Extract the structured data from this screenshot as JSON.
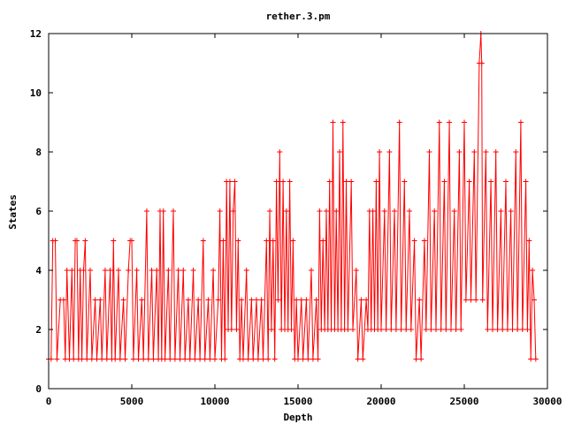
{
  "chart_data": {
    "type": "line",
    "title": "rether.3.pm",
    "xlabel": "Depth",
    "ylabel": "States",
    "xlim": [
      0,
      30000
    ],
    "ylim": [
      0,
      12
    ],
    "xticks": [
      0,
      5000,
      10000,
      15000,
      20000,
      25000,
      30000
    ],
    "yticks": [
      0,
      2,
      4,
      6,
      8,
      10,
      12
    ],
    "grid": false,
    "legend": "none",
    "series": [
      {
        "color": "#ff0000",
        "marker": "plus",
        "points": [
          [
            0,
            1
          ],
          [
            150,
            1
          ],
          [
            250,
            5
          ],
          [
            400,
            5
          ],
          [
            500,
            1
          ],
          [
            700,
            3
          ],
          [
            900,
            3
          ],
          [
            1000,
            1
          ],
          [
            1100,
            4
          ],
          [
            1250,
            1
          ],
          [
            1400,
            4
          ],
          [
            1500,
            1
          ],
          [
            1600,
            5
          ],
          [
            1700,
            5
          ],
          [
            1800,
            1
          ],
          [
            1900,
            4
          ],
          [
            2000,
            1
          ],
          [
            2100,
            4
          ],
          [
            2200,
            5
          ],
          [
            2300,
            1
          ],
          [
            2500,
            4
          ],
          [
            2600,
            1
          ],
          [
            2800,
            3
          ],
          [
            2900,
            1
          ],
          [
            3100,
            3
          ],
          [
            3200,
            1
          ],
          [
            3400,
            4
          ],
          [
            3500,
            1
          ],
          [
            3700,
            4
          ],
          [
            3800,
            1
          ],
          [
            3900,
            5
          ],
          [
            4000,
            1
          ],
          [
            4200,
            4
          ],
          [
            4300,
            1
          ],
          [
            4500,
            3
          ],
          [
            4600,
            1
          ],
          [
            4800,
            4
          ],
          [
            4900,
            5
          ],
          [
            5000,
            5
          ],
          [
            5100,
            1
          ],
          [
            5300,
            4
          ],
          [
            5400,
            1
          ],
          [
            5600,
            3
          ],
          [
            5700,
            1
          ],
          [
            5900,
            6
          ],
          [
            6000,
            1
          ],
          [
            6200,
            4
          ],
          [
            6300,
            1
          ],
          [
            6500,
            4
          ],
          [
            6600,
            1
          ],
          [
            6700,
            6
          ],
          [
            6800,
            1
          ],
          [
            6900,
            6
          ],
          [
            7000,
            1
          ],
          [
            7200,
            4
          ],
          [
            7300,
            1
          ],
          [
            7500,
            6
          ],
          [
            7600,
            1
          ],
          [
            7800,
            4
          ],
          [
            7900,
            1
          ],
          [
            8100,
            4
          ],
          [
            8200,
            1
          ],
          [
            8400,
            3
          ],
          [
            8500,
            1
          ],
          [
            8700,
            4
          ],
          [
            8800,
            1
          ],
          [
            9000,
            3
          ],
          [
            9100,
            1
          ],
          [
            9300,
            5
          ],
          [
            9400,
            1
          ],
          [
            9600,
            3
          ],
          [
            9700,
            1
          ],
          [
            9900,
            4
          ],
          [
            10000,
            1
          ],
          [
            10200,
            3
          ],
          [
            10300,
            6
          ],
          [
            10400,
            1
          ],
          [
            10500,
            5
          ],
          [
            10600,
            1
          ],
          [
            10700,
            7
          ],
          [
            10800,
            2
          ],
          [
            10900,
            7
          ],
          [
            11000,
            2
          ],
          [
            11100,
            6
          ],
          [
            11200,
            7
          ],
          [
            11300,
            2
          ],
          [
            11400,
            5
          ],
          [
            11500,
            1
          ],
          [
            11600,
            3
          ],
          [
            11700,
            1
          ],
          [
            11900,
            4
          ],
          [
            12000,
            1
          ],
          [
            12200,
            3
          ],
          [
            12300,
            1
          ],
          [
            12500,
            3
          ],
          [
            12600,
            1
          ],
          [
            12800,
            3
          ],
          [
            12900,
            1
          ],
          [
            13100,
            5
          ],
          [
            13200,
            1
          ],
          [
            13300,
            6
          ],
          [
            13400,
            2
          ],
          [
            13500,
            5
          ],
          [
            13600,
            1
          ],
          [
            13700,
            7
          ],
          [
            13800,
            3
          ],
          [
            13900,
            8
          ],
          [
            14000,
            2
          ],
          [
            14100,
            7
          ],
          [
            14200,
            2
          ],
          [
            14300,
            6
          ],
          [
            14400,
            2
          ],
          [
            14500,
            7
          ],
          [
            14600,
            2
          ],
          [
            14700,
            5
          ],
          [
            14800,
            1
          ],
          [
            14900,
            3
          ],
          [
            15000,
            1
          ],
          [
            15200,
            3
          ],
          [
            15300,
            1
          ],
          [
            15500,
            3
          ],
          [
            15600,
            1
          ],
          [
            15800,
            4
          ],
          [
            15900,
            1
          ],
          [
            16100,
            3
          ],
          [
            16200,
            1
          ],
          [
            16300,
            6
          ],
          [
            16400,
            2
          ],
          [
            16500,
            5
          ],
          [
            16600,
            2
          ],
          [
            16700,
            6
          ],
          [
            16800,
            2
          ],
          [
            16900,
            7
          ],
          [
            17000,
            2
          ],
          [
            17100,
            9
          ],
          [
            17200,
            2
          ],
          [
            17300,
            6
          ],
          [
            17400,
            2
          ],
          [
            17500,
            8
          ],
          [
            17600,
            2
          ],
          [
            17700,
            9
          ],
          [
            17800,
            2
          ],
          [
            17900,
            7
          ],
          [
            18000,
            2
          ],
          [
            18200,
            7
          ],
          [
            18300,
            2
          ],
          [
            18500,
            4
          ],
          [
            18600,
            1
          ],
          [
            18800,
            3
          ],
          [
            18900,
            1
          ],
          [
            19100,
            3
          ],
          [
            19200,
            2
          ],
          [
            19300,
            6
          ],
          [
            19400,
            2
          ],
          [
            19500,
            6
          ],
          [
            19600,
            2
          ],
          [
            19700,
            7
          ],
          [
            19800,
            2
          ],
          [
            19900,
            8
          ],
          [
            20000,
            2
          ],
          [
            20200,
            6
          ],
          [
            20300,
            2
          ],
          [
            20500,
            8
          ],
          [
            20600,
            2
          ],
          [
            20800,
            6
          ],
          [
            20900,
            2
          ],
          [
            21100,
            9
          ],
          [
            21200,
            2
          ],
          [
            21400,
            7
          ],
          [
            21500,
            2
          ],
          [
            21700,
            6
          ],
          [
            21800,
            2
          ],
          [
            22000,
            5
          ],
          [
            22100,
            1
          ],
          [
            22300,
            3
          ],
          [
            22400,
            1
          ],
          [
            22600,
            5
          ],
          [
            22700,
            2
          ],
          [
            22900,
            8
          ],
          [
            23000,
            2
          ],
          [
            23200,
            6
          ],
          [
            23300,
            2
          ],
          [
            23500,
            9
          ],
          [
            23600,
            2
          ],
          [
            23800,
            7
          ],
          [
            23900,
            2
          ],
          [
            24100,
            9
          ],
          [
            24200,
            2
          ],
          [
            24400,
            6
          ],
          [
            24500,
            2
          ],
          [
            24700,
            8
          ],
          [
            24800,
            2
          ],
          [
            25000,
            9
          ],
          [
            25100,
            3
          ],
          [
            25300,
            7
          ],
          [
            25400,
            3
          ],
          [
            25600,
            8
          ],
          [
            25700,
            3
          ],
          [
            25900,
            11
          ],
          [
            26000,
            12
          ],
          [
            26050,
            11
          ],
          [
            26100,
            3
          ],
          [
            26300,
            8
          ],
          [
            26400,
            2
          ],
          [
            26600,
            7
          ],
          [
            26700,
            2
          ],
          [
            26900,
            8
          ],
          [
            27000,
            2
          ],
          [
            27200,
            6
          ],
          [
            27300,
            2
          ],
          [
            27500,
            7
          ],
          [
            27600,
            2
          ],
          [
            27800,
            6
          ],
          [
            27900,
            2
          ],
          [
            28100,
            8
          ],
          [
            28200,
            2
          ],
          [
            28400,
            9
          ],
          [
            28500,
            2
          ],
          [
            28700,
            7
          ],
          [
            28800,
            2
          ],
          [
            28900,
            5
          ],
          [
            29000,
            1
          ],
          [
            29100,
            4
          ],
          [
            29200,
            3
          ],
          [
            29300,
            1
          ]
        ]
      }
    ]
  }
}
